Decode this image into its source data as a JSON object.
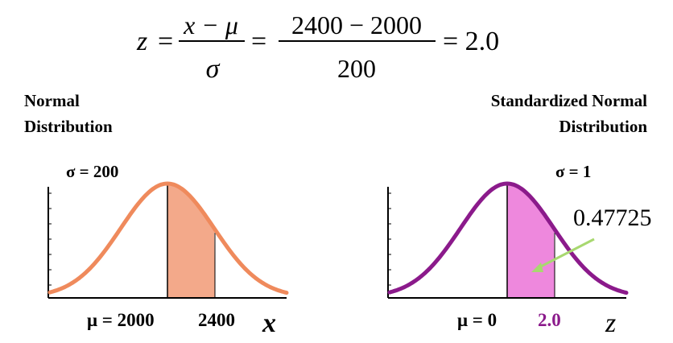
{
  "formula": {
    "z": "z",
    "eq": "=",
    "frac1_num": "x − μ",
    "frac1_den": "σ",
    "frac2_num": "2400 − 2000",
    "frac2_den": "200",
    "result": "= 2.0"
  },
  "left_panel": {
    "title_line1": "Normal",
    "title_line2": "Distribution",
    "sigma_label": "σ = 200",
    "mu_label": "μ = 2000",
    "x_value_label": "2400",
    "axis_var": "x",
    "curve_color": "#ef8a5c",
    "fill_color": "#f3a98a"
  },
  "right_panel": {
    "title_line1": "Standardized Normal",
    "title_line2": "Distribution",
    "sigma_label": "σ = 1",
    "mu_label": "μ = 0",
    "z_value_label": "2.0",
    "axis_var": "z",
    "area_label": "0.47725",
    "curve_color": "#8b1a8b",
    "fill_color": "#ee88dd",
    "arrow_color": "#a8d870"
  }
}
